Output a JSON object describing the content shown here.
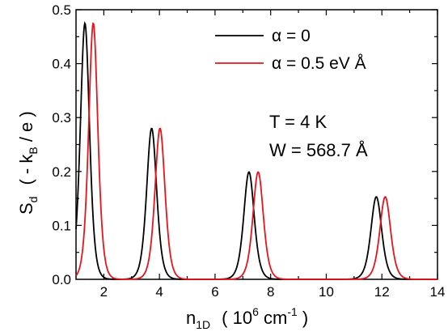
{
  "chart_data": {
    "type": "line",
    "xlim": [
      1,
      14
    ],
    "ylim": [
      0.0,
      0.5
    ],
    "x_ticks": [
      "2",
      "4",
      "6",
      "8",
      "10",
      "12",
      "14"
    ],
    "y_ticks": [
      "0.0",
      "0.1",
      "0.2",
      "0.3",
      "0.4",
      "0.5"
    ],
    "xlabel": {
      "main": "n",
      "sub": "1D",
      "open": "( 10",
      "sup": "6",
      "unit": " cm",
      "unit_sup": "-1",
      "close": " )"
    },
    "ylabel": {
      "main": "S",
      "sub": "d",
      "open": "( - k",
      "sub2": "B",
      "close": " / e )"
    },
    "grid": false,
    "legend_position": "top-right",
    "series": [
      {
        "name": "α = 0",
        "color": "#000000",
        "peaks": [
          [
            1.32,
            0.475,
            0.22
          ],
          [
            3.72,
            0.28,
            0.24
          ],
          [
            7.22,
            0.199,
            0.25
          ],
          [
            11.8,
            0.153,
            0.26
          ]
        ]
      },
      {
        "name": "α = 0.5 eV  Å",
        "color": "#e8141b",
        "peaks": [
          [
            1.62,
            0.475,
            0.22
          ],
          [
            4.02,
            0.28,
            0.24
          ],
          [
            7.55,
            0.199,
            0.25
          ],
          [
            12.12,
            0.153,
            0.26
          ]
        ]
      }
    ],
    "annotations": [
      "T = 4 K",
      "W = 568.7  Å"
    ]
  }
}
